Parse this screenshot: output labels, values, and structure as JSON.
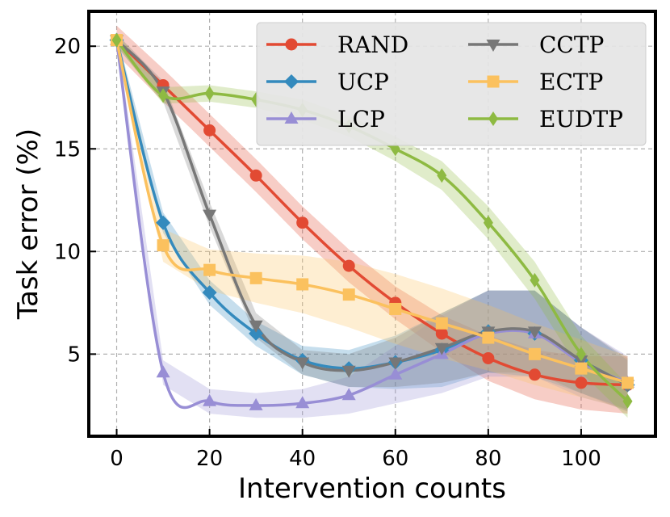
{
  "chart_data": {
    "type": "line",
    "xlabel": "Intervention counts",
    "ylabel": "Task error (%)",
    "xlim": [
      -6,
      116
    ],
    "ylim": [
      1.0,
      21.7
    ],
    "xticks": [
      0,
      20,
      40,
      60,
      80,
      100
    ],
    "yticks": [
      5,
      10,
      15,
      20
    ],
    "grid": true,
    "legend_position": "top-right",
    "series": [
      {
        "name": "RAND",
        "color": "#e24a33",
        "marker": "circle",
        "x": [
          0,
          10,
          20,
          30,
          40,
          50,
          60,
          70,
          80,
          90,
          100,
          110
        ],
        "values": [
          20.3,
          18.1,
          15.9,
          13.7,
          11.4,
          9.3,
          7.5,
          6.0,
          4.8,
          4.0,
          3.6,
          3.5
        ],
        "band": [
          0.7,
          0.8,
          0.8,
          0.8,
          0.8,
          0.8,
          0.8,
          0.9,
          1.1,
          1.2,
          1.3,
          1.4
        ]
      },
      {
        "name": "UCP",
        "color": "#348abd",
        "marker": "diamond",
        "x": [
          0,
          10,
          20,
          30,
          40,
          50,
          60,
          70,
          80,
          90,
          100,
          110
        ],
        "values": [
          20.3,
          11.4,
          8.0,
          6.0,
          4.7,
          4.3,
          4.6,
          5.2,
          6.1,
          6.0,
          4.7,
          3.5
        ],
        "band": [
          0.3,
          0.5,
          0.6,
          0.6,
          0.7,
          0.9,
          1.3,
          1.8,
          2.0,
          2.1,
          1.6,
          1.2
        ]
      },
      {
        "name": "LCP",
        "color": "#988ed5",
        "marker": "triangle-up",
        "x": [
          0,
          10,
          20,
          30,
          40,
          50,
          60,
          70,
          80,
          90,
          100,
          110
        ],
        "values": [
          20.3,
          4.1,
          2.7,
          2.5,
          2.6,
          3.0,
          4.0,
          5.0,
          6.0,
          6.0,
          4.6,
          3.6
        ],
        "band": [
          0.3,
          0.6,
          0.6,
          0.6,
          0.7,
          0.9,
          1.4,
          1.9,
          2.1,
          2.1,
          1.7,
          1.3
        ]
      },
      {
        "name": "CCTP",
        "color": "#777777",
        "marker": "triangle-down",
        "x": [
          0,
          10,
          20,
          30,
          40,
          50,
          60,
          70,
          80,
          90,
          100,
          110
        ],
        "values": [
          20.3,
          17.8,
          11.8,
          6.4,
          4.6,
          4.2,
          4.6,
          5.3,
          6.1,
          6.1,
          4.7,
          3.5
        ],
        "band": [
          0.3,
          0.5,
          0.6,
          0.6,
          0.6,
          0.8,
          1.2,
          1.7,
          2.0,
          2.0,
          1.6,
          1.3
        ]
      },
      {
        "name": "ECTP",
        "color": "#fbc15e",
        "marker": "square",
        "x": [
          0,
          10,
          20,
          30,
          40,
          50,
          60,
          70,
          80,
          90,
          100,
          110
        ],
        "values": [
          20.3,
          10.3,
          9.1,
          8.7,
          8.4,
          7.9,
          7.2,
          6.5,
          5.8,
          5.0,
          4.3,
          3.6
        ],
        "band": [
          0.3,
          0.8,
          1.0,
          1.2,
          1.4,
          1.6,
          1.7,
          1.7,
          1.6,
          1.5,
          1.4,
          1.3
        ]
      },
      {
        "name": "EUDTP",
        "color": "#8eba42",
        "marker": "thin-diamond",
        "x": [
          0,
          10,
          20,
          30,
          40,
          50,
          60,
          70,
          80,
          90,
          100,
          110
        ],
        "values": [
          20.3,
          17.6,
          17.7,
          17.4,
          16.9,
          16.1,
          15.0,
          13.7,
          11.4,
          8.6,
          5.0,
          2.7
        ],
        "band": [
          0.3,
          0.4,
          0.4,
          0.4,
          0.5,
          0.5,
          0.6,
          0.7,
          0.8,
          0.9,
          0.9,
          0.8
        ]
      }
    ]
  }
}
